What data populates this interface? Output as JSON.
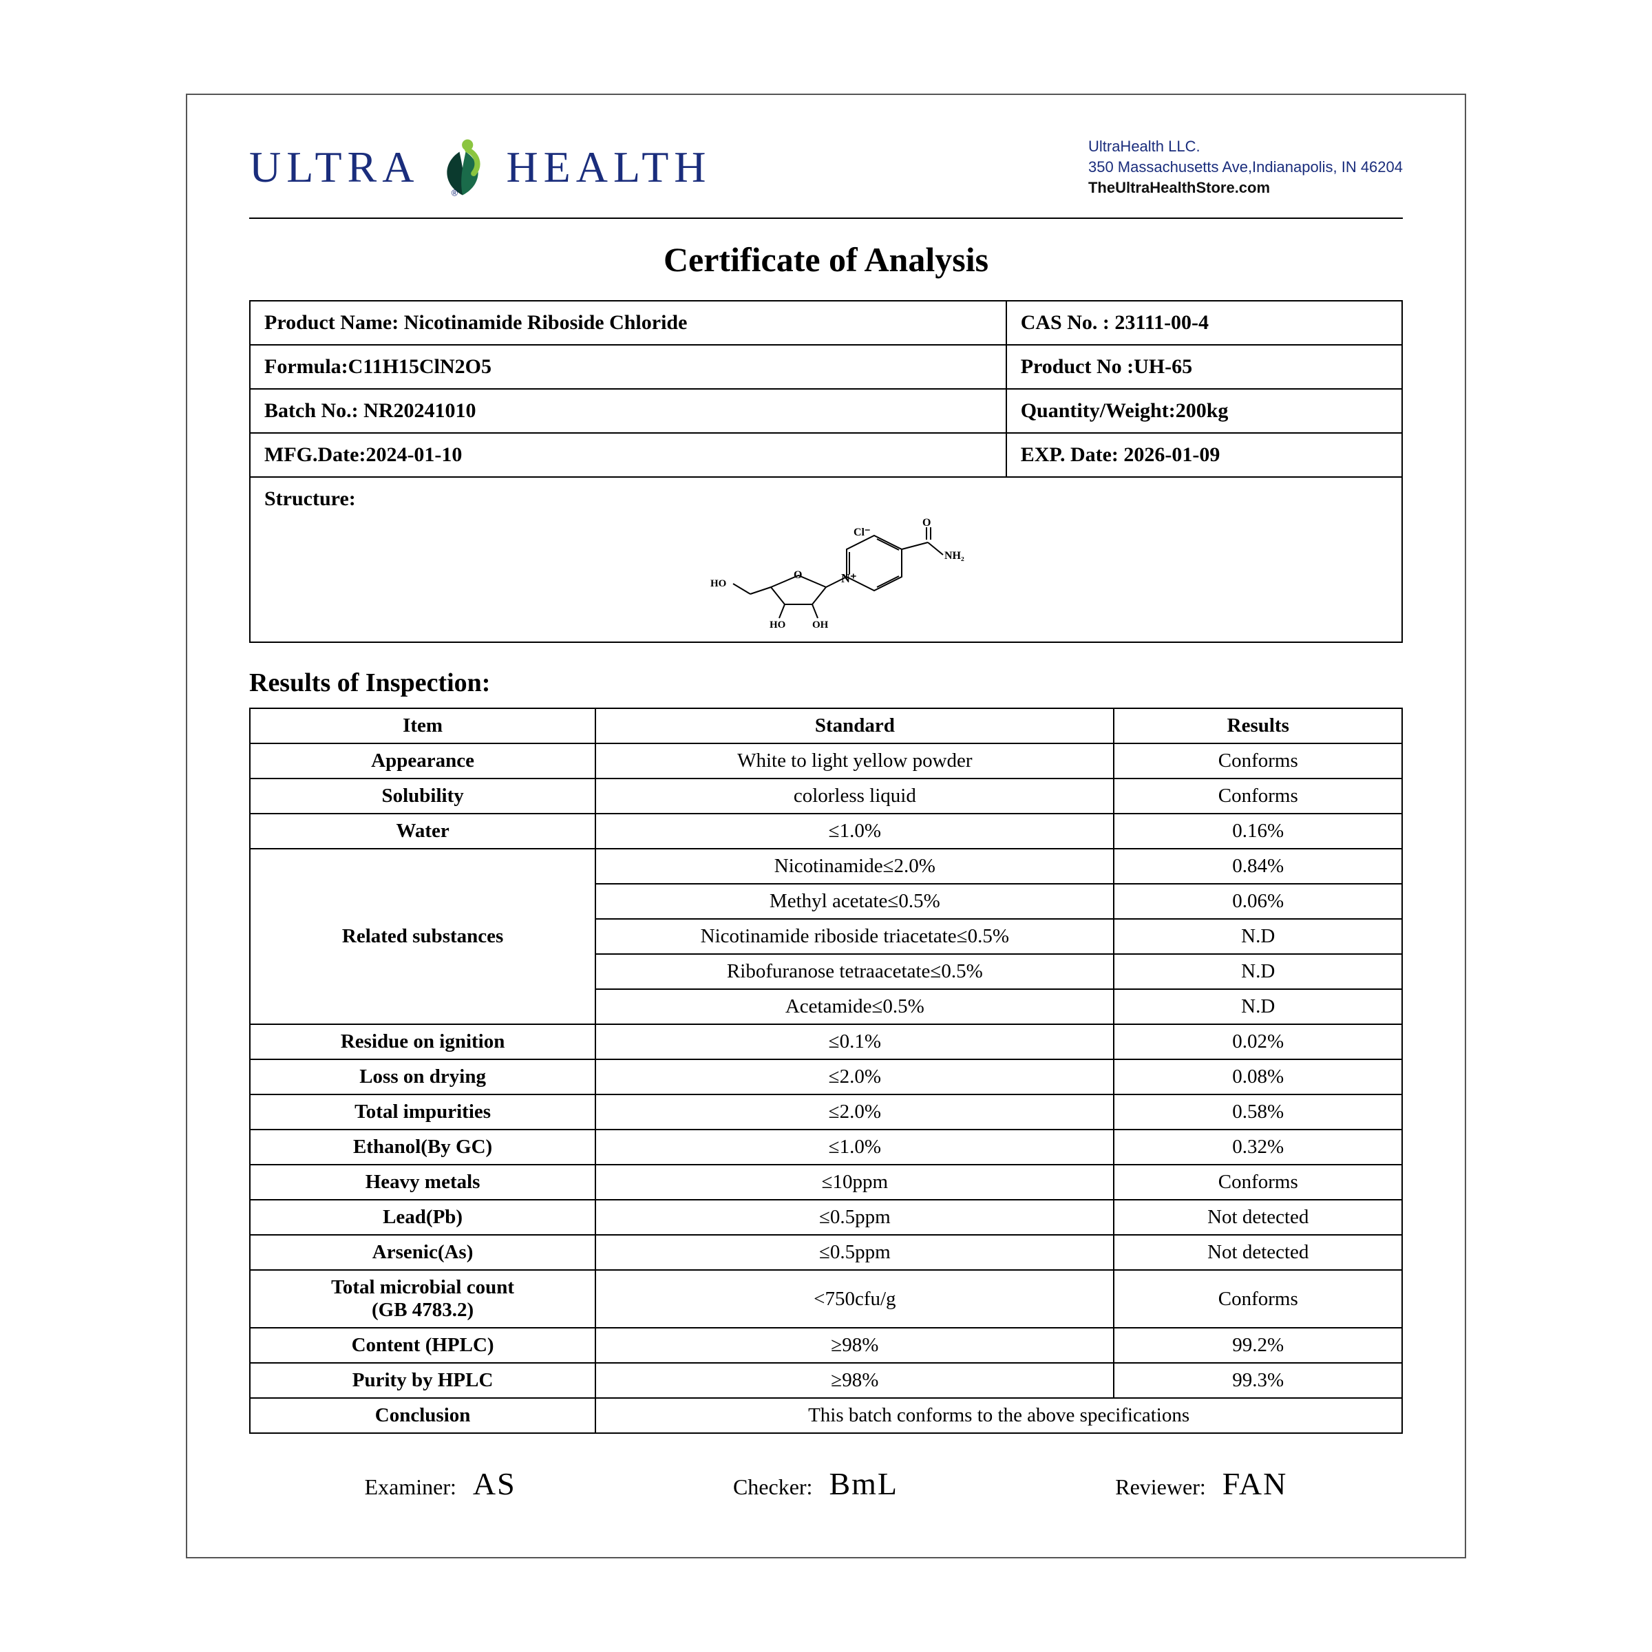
{
  "logo": {
    "word1": "ULTRA",
    "word2": "HEALTH"
  },
  "company": {
    "name": "UltraHealth LLC.",
    "address": "350 Massachusetts Ave,Indianapolis, IN 46204",
    "url": "TheUltraHealthStore.com"
  },
  "title": "Certificate of Analysis",
  "info": {
    "product_name_label": "Product Name: ",
    "product_name": "Nicotinamide Riboside Chloride",
    "cas_label": "CAS No. : ",
    "cas": "23111-00-4",
    "formula_label": "Formula:",
    "formula": "C11H15ClN2O5",
    "product_no_label": "Product No :",
    "product_no": "UH-65",
    "batch_label": "Batch No.: ",
    "batch": "NR20241010",
    "qty_label": "Quantity/Weight:",
    "qty": "200kg",
    "mfg_label": "MFG.Date:",
    "mfg": "2024-01-10",
    "exp_label": "EXP. Date: ",
    "exp": "2026-01-09",
    "structure_label": "Structure:"
  },
  "results_heading": "Results of Inspection:",
  "results": {
    "headers": {
      "item": "Item",
      "standard": "Standard",
      "results": "Results"
    },
    "rows": [
      {
        "item": "Appearance",
        "standard": "White to light yellow powder",
        "result": "Conforms"
      },
      {
        "item": "Solubility",
        "standard": "colorless liquid",
        "result": "Conforms"
      },
      {
        "item": "Water",
        "standard": "≤1.0%",
        "result": "0.16%"
      }
    ],
    "related": {
      "label": "Related substances",
      "subrows": [
        {
          "standard": "Nicotinamide≤2.0%",
          "result": "0.84%"
        },
        {
          "standard": "Methyl acetate≤0.5%",
          "result": "0.06%"
        },
        {
          "standard": "Nicotinamide riboside triacetate≤0.5%",
          "result": "N.D"
        },
        {
          "standard": "Ribofuranose tetraacetate≤0.5%",
          "result": "N.D"
        },
        {
          "standard": "Acetamide≤0.5%",
          "result": "N.D"
        }
      ]
    },
    "rows2": [
      {
        "item": "Residue on ignition",
        "standard": "≤0.1%",
        "result": "0.02%"
      },
      {
        "item": "Loss on drying",
        "standard": "≤2.0%",
        "result": "0.08%"
      },
      {
        "item": "Total impurities",
        "standard": "≤2.0%",
        "result": "0.58%"
      },
      {
        "item": "Ethanol(By GC)",
        "standard": "≤1.0%",
        "result": "0.32%"
      },
      {
        "item": "Heavy metals",
        "standard": "≤10ppm",
        "result": "Conforms"
      },
      {
        "item": "Lead(Pb)",
        "standard": "≤0.5ppm",
        "result": "Not detected"
      },
      {
        "item": "Arsenic(As)",
        "standard": "≤0.5ppm",
        "result": "Not detected"
      },
      {
        "item": "Total microbial count\n(GB 4783.2)",
        "standard": "<750cfu/g",
        "result": "Conforms"
      },
      {
        "item": "Content (HPLC)",
        "standard": "≥98%",
        "result": "99.2%"
      },
      {
        "item": "Purity by HPLC",
        "standard": "≥98%",
        "result": "99.3%"
      }
    ],
    "conclusion": {
      "label": "Conclusion",
      "text": "This batch conforms to the above specifications"
    }
  },
  "signatures": {
    "examiner_label": "Examiner:",
    "examiner": "AS",
    "checker_label": "Checker:",
    "checker": "BmL",
    "reviewer_label": "Reviewer:",
    "reviewer": "FAN"
  },
  "colors": {
    "brand": "#1a2d7c",
    "leaf_green": "#8bc540",
    "leaf_dark": "#0b3a2e",
    "border": "#000000"
  }
}
